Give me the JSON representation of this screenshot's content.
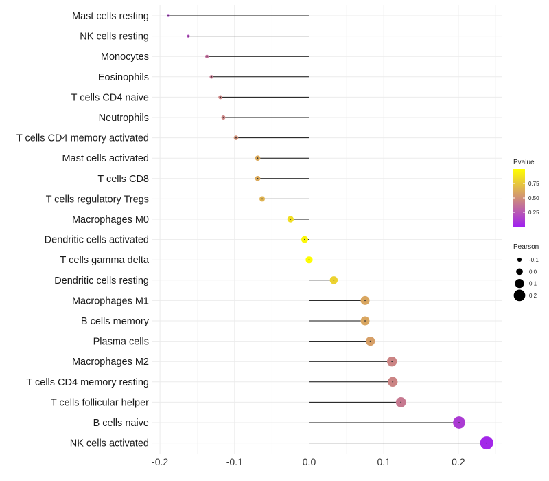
{
  "chart_data": {
    "type": "lollipop",
    "title": "",
    "xlabel": "",
    "ylabel": "",
    "xlim": [
      -0.2,
      0.24
    ],
    "x_ticks": [
      {
        "value": -0.2,
        "label": "-0.2"
      },
      {
        "value": -0.1,
        "label": "-0.1"
      },
      {
        "value": 0.0,
        "label": "0.0"
      },
      {
        "value": 0.1,
        "label": "0.1"
      },
      {
        "value": 0.2,
        "label": "0.2"
      }
    ],
    "points": [
      {
        "category": "Mast cells resting",
        "pearson": -0.189,
        "pvalue": 0.15
      },
      {
        "category": "NK cells resting",
        "pearson": -0.162,
        "pvalue": 0.2
      },
      {
        "category": "Monocytes",
        "pearson": -0.137,
        "pvalue": 0.35
      },
      {
        "category": "Eosinophils",
        "pearson": -0.131,
        "pvalue": 0.4
      },
      {
        "category": "T cells CD4 naive",
        "pearson": -0.119,
        "pvalue": 0.45
      },
      {
        "category": "Neutrophils",
        "pearson": -0.115,
        "pvalue": 0.45
      },
      {
        "category": "T cells CD4 memory activated",
        "pearson": -0.098,
        "pvalue": 0.5
      },
      {
        "category": "Mast cells activated",
        "pearson": -0.069,
        "pvalue": 0.62
      },
      {
        "category": "T cells CD8",
        "pearson": -0.069,
        "pvalue": 0.62
      },
      {
        "category": "T cells regulatory  Tregs ",
        "pearson": -0.063,
        "pvalue": 0.66
      },
      {
        "category": "Macrophages M0",
        "pearson": -0.025,
        "pvalue": 0.85
      },
      {
        "category": "Dendritic cells activated",
        "pearson": -0.006,
        "pvalue": 0.96
      },
      {
        "category": "T cells gamma delta",
        "pearson": 0.0,
        "pvalue": 0.99
      },
      {
        "category": "Dendritic cells resting",
        "pearson": 0.033,
        "pvalue": 0.8
      },
      {
        "category": "Macrophages M1",
        "pearson": 0.075,
        "pvalue": 0.6
      },
      {
        "category": "B cells memory",
        "pearson": 0.075,
        "pvalue": 0.6
      },
      {
        "category": "Plasma cells",
        "pearson": 0.082,
        "pvalue": 0.57
      },
      {
        "category": "Macrophages M2",
        "pearson": 0.111,
        "pvalue": 0.45
      },
      {
        "category": "T cells CD4 memory resting",
        "pearson": 0.112,
        "pvalue": 0.45
      },
      {
        "category": "T cells follicular helper",
        "pearson": 0.123,
        "pvalue": 0.4
      },
      {
        "category": "B cells naive",
        "pearson": 0.201,
        "pvalue": 0.12
      },
      {
        "category": "NK cells activated",
        "pearson": 0.238,
        "pvalue": 0.03
      }
    ],
    "legend_color": {
      "title": "Pvalue",
      "range": [
        0.0,
        1.0
      ],
      "low_color": "#a020f0",
      "high_color": "#ffff00",
      "ticks": [
        {
          "value": 0.75,
          "label": "0.75"
        },
        {
          "value": 0.5,
          "label": "0.50"
        },
        {
          "value": 0.25,
          "label": "0.25"
        }
      ]
    },
    "legend_size": {
      "title": "Pearson",
      "entries": [
        {
          "value": -0.1,
          "label": "-0.1"
        },
        {
          "value": 0.0,
          "label": "0.0"
        },
        {
          "value": 0.1,
          "label": "0.1"
        },
        {
          "value": 0.2,
          "label": "0.2"
        }
      ]
    },
    "grid": true,
    "legend_position": "right"
  }
}
